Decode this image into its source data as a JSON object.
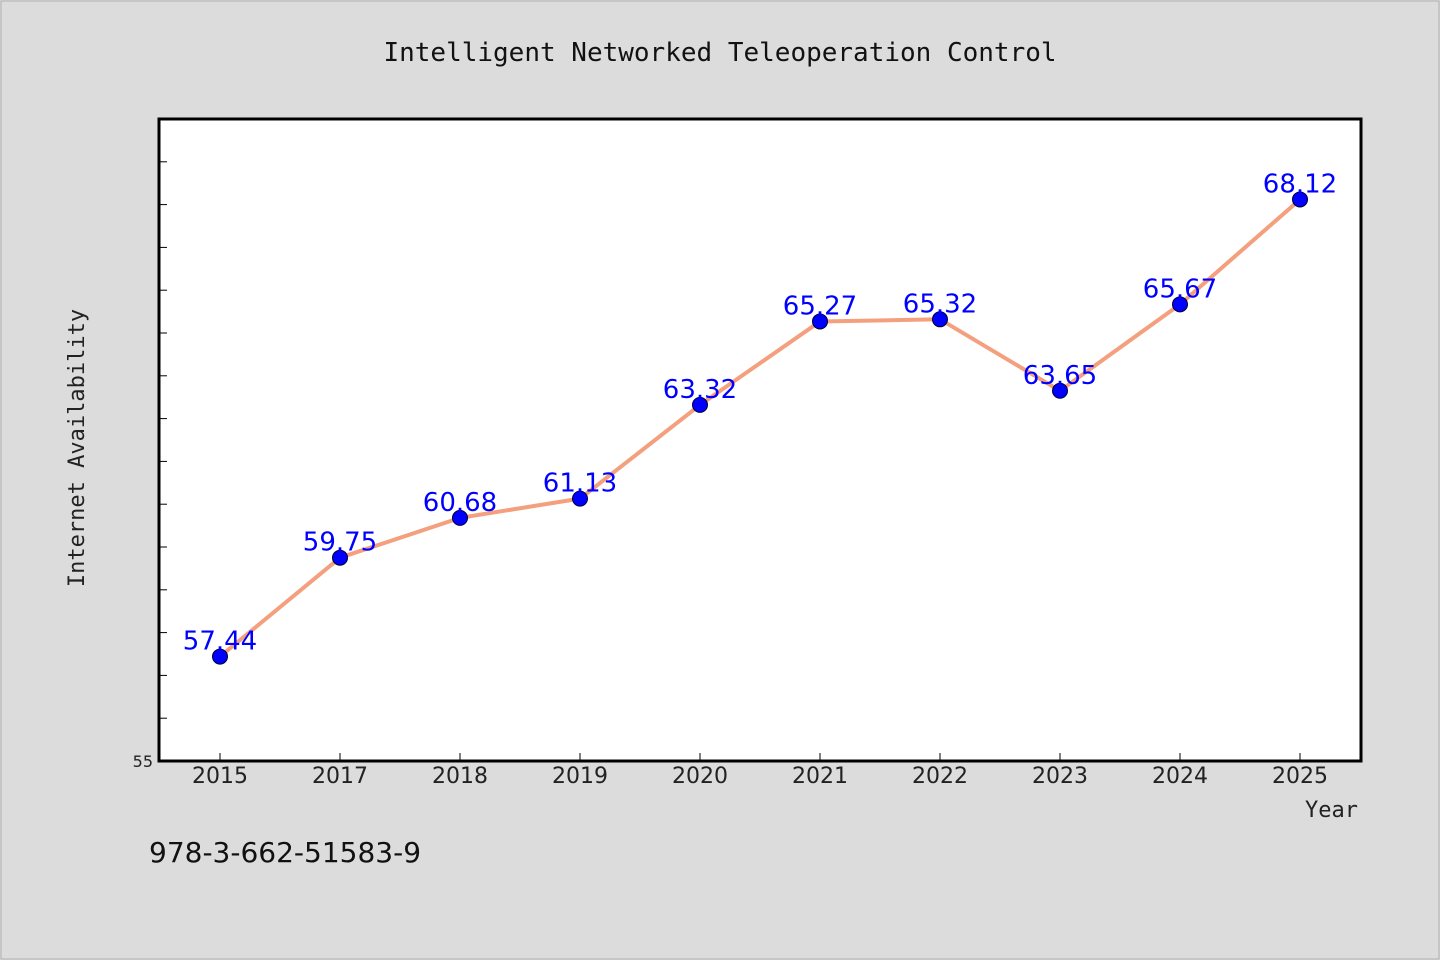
{
  "colors": {
    "background": "#dcdcdc",
    "plot_background": "#ffffff",
    "line": "#f4a07f",
    "marker": "#0000ff",
    "data_label": "#0000ff",
    "frame": "#000000"
  },
  "footer": {
    "isbn": "978-3-662-51583-9"
  },
  "chart_data": {
    "type": "line",
    "title": "Intelligent Networked Teleoperation Control",
    "xlabel": "Year",
    "ylabel": "Internet Availability",
    "categories": [
      "2015",
      "2017",
      "2018",
      "2019",
      "2020",
      "2021",
      "2022",
      "2023",
      "2024",
      "2025"
    ],
    "series": [
      {
        "values": [
          57.44,
          59.75,
          60.68,
          61.13,
          63.32,
          65.27,
          65.32,
          63.65,
          65.67,
          68.12
        ]
      }
    ],
    "data_labels": [
      "57.44",
      "59.75",
      "60.68",
      "61.13",
      "63.32",
      "65.27",
      "65.32",
      "63.65",
      "65.67",
      "68.12"
    ],
    "ylim": [
      55,
      70
    ],
    "y_tick_step": 1,
    "y_tick_labels": [
      "55"
    ],
    "grid": false,
    "legend": "none",
    "marker": "circle"
  }
}
